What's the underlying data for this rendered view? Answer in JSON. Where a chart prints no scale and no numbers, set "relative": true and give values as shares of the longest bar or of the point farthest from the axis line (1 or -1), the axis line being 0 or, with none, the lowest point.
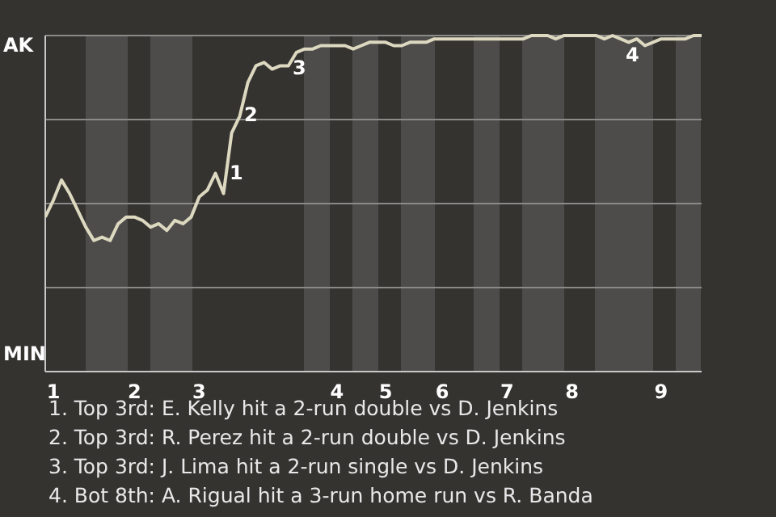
{
  "chart_data": {
    "type": "line",
    "relative": true,
    "categories": [
      null,
      "1",
      null,
      null,
      null,
      null,
      null,
      null,
      null,
      null,
      null,
      "2",
      null,
      null,
      null,
      null,
      null,
      null,
      null,
      "3",
      null,
      null,
      null,
      null,
      null,
      null,
      null,
      null,
      null,
      null,
      null,
      null,
      null,
      null,
      null,
      null,
      "4",
      null,
      null,
      null,
      null,
      null,
      "5",
      null,
      null,
      null,
      null,
      null,
      null,
      "6",
      null,
      null,
      null,
      null,
      null,
      null,
      null,
      "7",
      null,
      null,
      null,
      null,
      null,
      null,
      null,
      "8",
      null,
      null,
      null,
      null,
      null,
      null,
      null,
      null,
      null,
      null,
      "9",
      null,
      null,
      null,
      null,
      null
    ],
    "series": [
      {
        "color": "#ddd8c0",
        "values": [
          0.46,
          0.51,
          0.57,
          0.53,
          0.48,
          0.43,
          0.39,
          0.4,
          0.39,
          0.44,
          0.46,
          0.46,
          0.45,
          0.43,
          0.44,
          0.42,
          0.45,
          0.44,
          0.46,
          0.52,
          0.54,
          0.59,
          0.53,
          0.71,
          0.76,
          0.86,
          0.91,
          0.92,
          0.9,
          0.91,
          0.91,
          0.95,
          0.96,
          0.96,
          0.97,
          0.97,
          0.97,
          0.97,
          0.96,
          0.97,
          0.98,
          0.98,
          0.98,
          0.97,
          0.97,
          0.98,
          0.98,
          0.98,
          0.99,
          0.99,
          0.99,
          0.99,
          0.99,
          0.99,
          0.99,
          0.99,
          0.99,
          0.99,
          0.99,
          0.99,
          1.0,
          1.0,
          1.0,
          0.99,
          1.0,
          1.0,
          1.0,
          1.0,
          1.0,
          0.99,
          1.0,
          0.99,
          0.98,
          0.99,
          0.97,
          0.98,
          0.99,
          0.99,
          0.99,
          0.99,
          1.0,
          1.0
        ]
      }
    ],
    "grid": "y",
    "legend": false,
    "marker": "none",
    "line_style": "solid",
    "annotations": [
      "AK",
      "MIN",
      "1",
      "2",
      "3",
      "4",
      "1. Top 3rd: E. Kelly hit a 2-run double vs D. Jenkins",
      "2. Top 3rd: R. Perez hit a 2-run double vs D. Jenkins",
      "3. Top 3rd: J. Lima hit a 2-run single vs D. Jenkins",
      "4. Bot 8th: A. Rigual hit a 3-run home run vs R. Banda"
    ]
  }
}
